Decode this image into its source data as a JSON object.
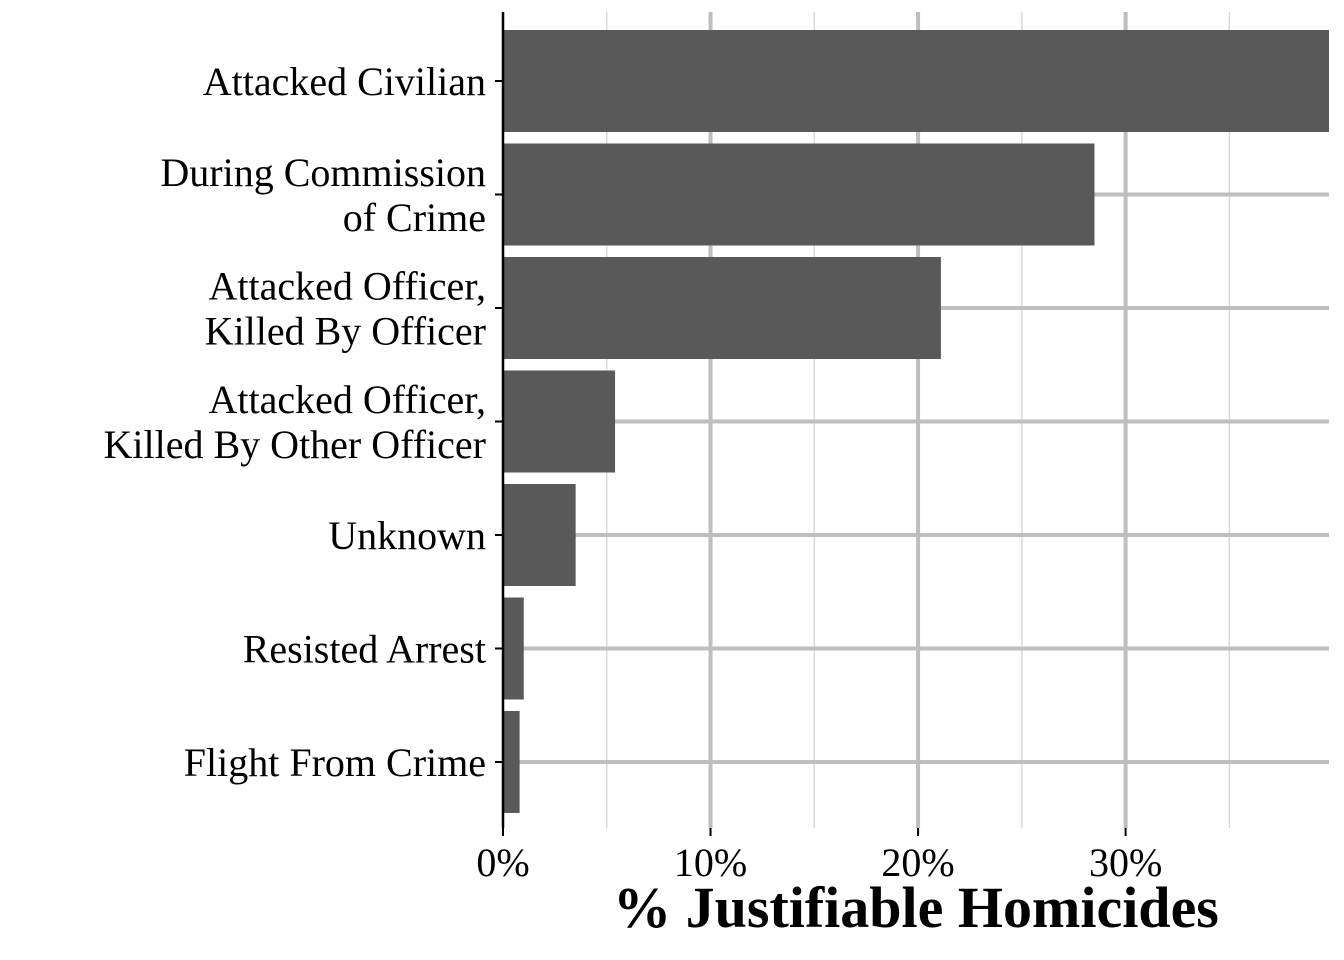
{
  "chart_data": {
    "type": "bar",
    "orientation": "horizontal",
    "categories": [
      [
        "Attacked Civilian"
      ],
      [
        "During Commission",
        "of Crime"
      ],
      [
        "Attacked Officer,",
        "Killed By Officer"
      ],
      [
        "Attacked Officer,",
        "Killed By Other Officer"
      ],
      [
        "Unknown"
      ],
      [
        "Resisted Arrest"
      ],
      [
        "Flight From Crime"
      ]
    ],
    "values": [
      39.8,
      28.5,
      21.1,
      5.4,
      3.5,
      1.0,
      0.8
    ],
    "xlabel": "% Justifiable Homicides",
    "ylabel": "",
    "xlim": [
      0,
      39.8
    ],
    "xticks": [
      {
        "value": 0,
        "label": "0%"
      },
      {
        "value": 10,
        "label": "10%"
      },
      {
        "value": 20,
        "label": "20%"
      },
      {
        "value": 30,
        "label": "30%"
      }
    ],
    "minor_gridlines": [
      5,
      15,
      25,
      35
    ],
    "grid": true,
    "legend": "none",
    "colors": {
      "bar": "#595959",
      "grid_major": "#bebebe",
      "grid_minor": "#d9d9d9",
      "axis": "#000000"
    }
  }
}
